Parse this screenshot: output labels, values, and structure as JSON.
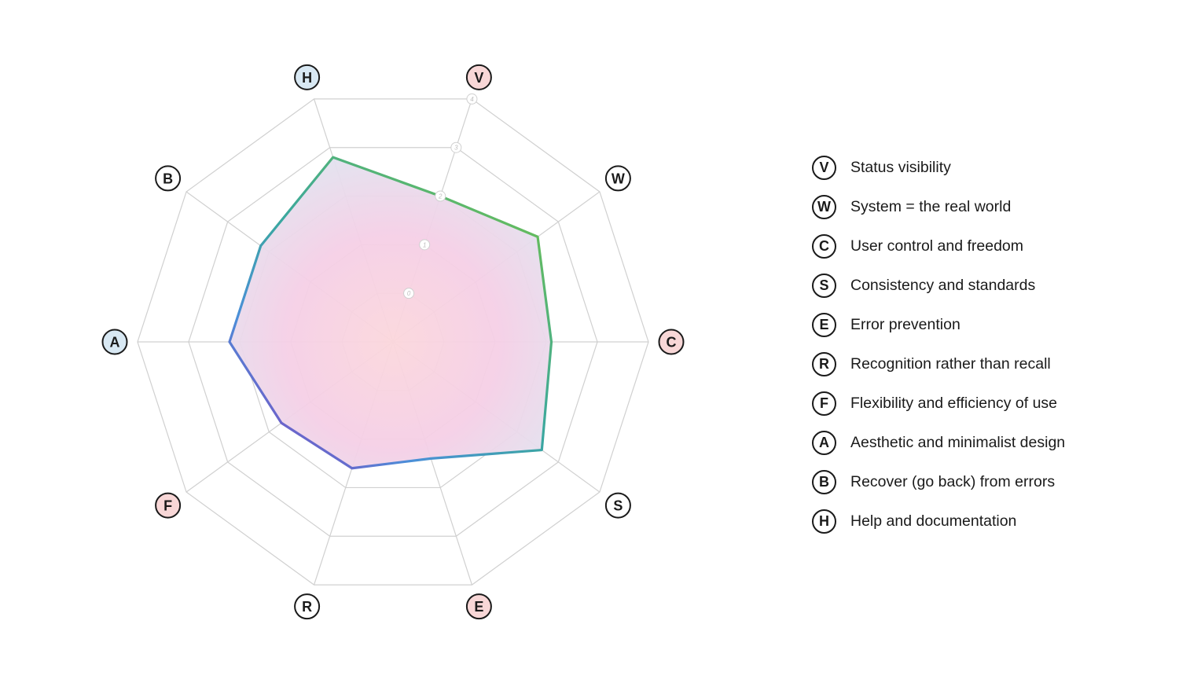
{
  "chart_data": {
    "type": "radar",
    "axes": [
      {
        "code": "V",
        "label": "Status visibility",
        "value": 2,
        "highlight": "red"
      },
      {
        "code": "W",
        "label": "System = the real world",
        "value": 2.5,
        "highlight": "none"
      },
      {
        "code": "C",
        "label": "User control and freedom",
        "value": 2.1,
        "highlight": "red"
      },
      {
        "code": "S",
        "label": "Consistency and standards",
        "value": 2.6,
        "highlight": "none"
      },
      {
        "code": "E",
        "label": "Error prevention",
        "value": 1.4,
        "highlight": "red"
      },
      {
        "code": "R",
        "label": "Recognition rather than recall",
        "value": 1.6,
        "highlight": "none"
      },
      {
        "code": "F",
        "label": "Flexibility and efficiency of use",
        "value": 1.7,
        "highlight": "red"
      },
      {
        "code": "A",
        "label": "Aesthetic and minimalist design",
        "value": 2.2,
        "highlight": "blue"
      },
      {
        "code": "B",
        "label": "Recover (go back) from errors",
        "value": 2.2,
        "highlight": "none"
      },
      {
        "code": "H",
        "label": "Help and documentation",
        "value": 2.8,
        "highlight": "blue"
      }
    ],
    "tick_labels": [
      "0",
      "1",
      "2",
      "3",
      "4"
    ],
    "range": [
      0,
      4
    ],
    "grid": true,
    "legend_position": "right"
  },
  "colors": {
    "grid": "#d0d0d0",
    "badge_red": "#f8d7d7",
    "badge_blue": "#d8e8f3",
    "badge_plain": "#ffffff",
    "line_green": "#76c442",
    "line_teal": "#3aa7a0",
    "line_blue": "#4b8fd8",
    "line_purple": "#7b4fc4",
    "fill_center": "#fbd7dc",
    "fill_mid": "#f5cfe6",
    "fill_outer": "#d9ebf3"
  }
}
